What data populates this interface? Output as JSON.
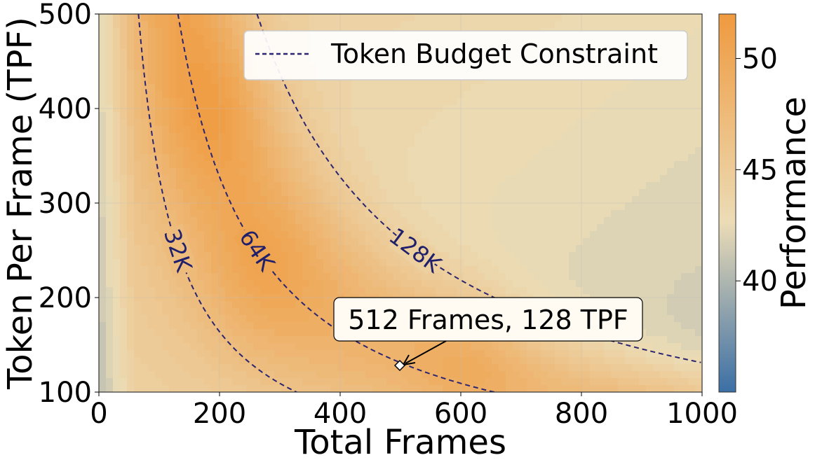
{
  "chart_data": {
    "type": "heatmap",
    "title": "",
    "xlabel": "Total Frames",
    "ylabel": "Token Per Frame (TPF)",
    "xlim": [
      0,
      1000
    ],
    "ylim": [
      100,
      500
    ],
    "xticks": [
      "0",
      "200",
      "400",
      "600",
      "800",
      "1000"
    ],
    "yticks": [
      "100",
      "200",
      "300",
      "400",
      "500"
    ],
    "colorbar": {
      "label": "Performance",
      "range": [
        35,
        52
      ],
      "ticks": [
        "40",
        "45",
        "50"
      ],
      "low_color": "#3b6fa5",
      "mid_color": "#ecdcb6",
      "high_color": "#ef9a3f"
    },
    "grid": true,
    "budget_lines": [
      {
        "label": "32K",
        "tokens": 32768
      },
      {
        "label": "64K",
        "tokens": 65536
      },
      {
        "label": "128K",
        "tokens": 131072
      }
    ],
    "budget_line_color": "#2b2470",
    "legend": {
      "label": "Token Budget Constraint",
      "placement": "top-right"
    },
    "annotation": {
      "text": "512 Frames, 128 TPF",
      "x": 512,
      "y": 128
    },
    "performance_peaks": [
      {
        "frames": 190,
        "tpf": 400,
        "value": 50
      },
      {
        "frames": 270,
        "tpf": 220,
        "value": 50
      },
      {
        "frames": 620,
        "tpf": 140,
        "value": 50
      }
    ]
  }
}
